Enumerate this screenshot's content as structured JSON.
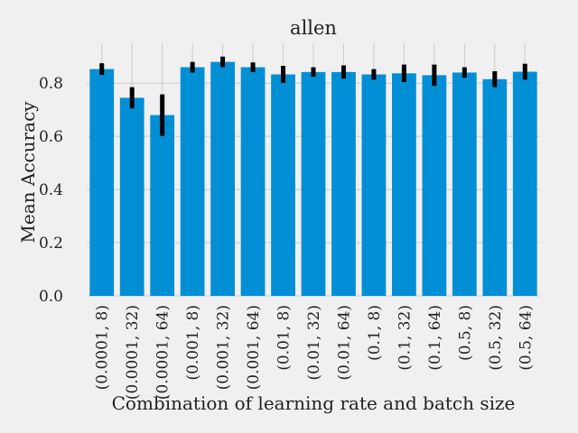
{
  "chart_data": {
    "type": "bar",
    "title": "allen",
    "xlabel": "Combination of learning rate and batch size",
    "ylabel": "Mean Accuracy",
    "ylim": [
      0,
      0.95
    ],
    "yticks": [
      0.0,
      0.2,
      0.4,
      0.6,
      0.8
    ],
    "ytick_labels": [
      "0.0",
      "0.2",
      "0.4",
      "0.6",
      "0.8"
    ],
    "grid": true,
    "bar_color": "#008fd5",
    "error_bar_color": "#000000",
    "categories": [
      "(0.0001, 8)",
      "(0.0001, 32)",
      "(0.0001, 64)",
      "(0.001, 8)",
      "(0.001, 32)",
      "(0.001, 64)",
      "(0.01, 8)",
      "(0.01, 32)",
      "(0.01, 64)",
      "(0.1, 8)",
      "(0.1, 32)",
      "(0.1, 64)",
      "(0.5, 8)",
      "(0.5, 32)",
      "(0.5, 64)"
    ],
    "values": [
      0.853,
      0.745,
      0.68,
      0.86,
      0.88,
      0.86,
      0.833,
      0.842,
      0.842,
      0.833,
      0.837,
      0.83,
      0.84,
      0.815,
      0.843
    ],
    "errors": [
      0.022,
      0.04,
      0.078,
      0.02,
      0.02,
      0.018,
      0.032,
      0.018,
      0.025,
      0.02,
      0.033,
      0.04,
      0.02,
      0.03,
      0.03
    ]
  }
}
